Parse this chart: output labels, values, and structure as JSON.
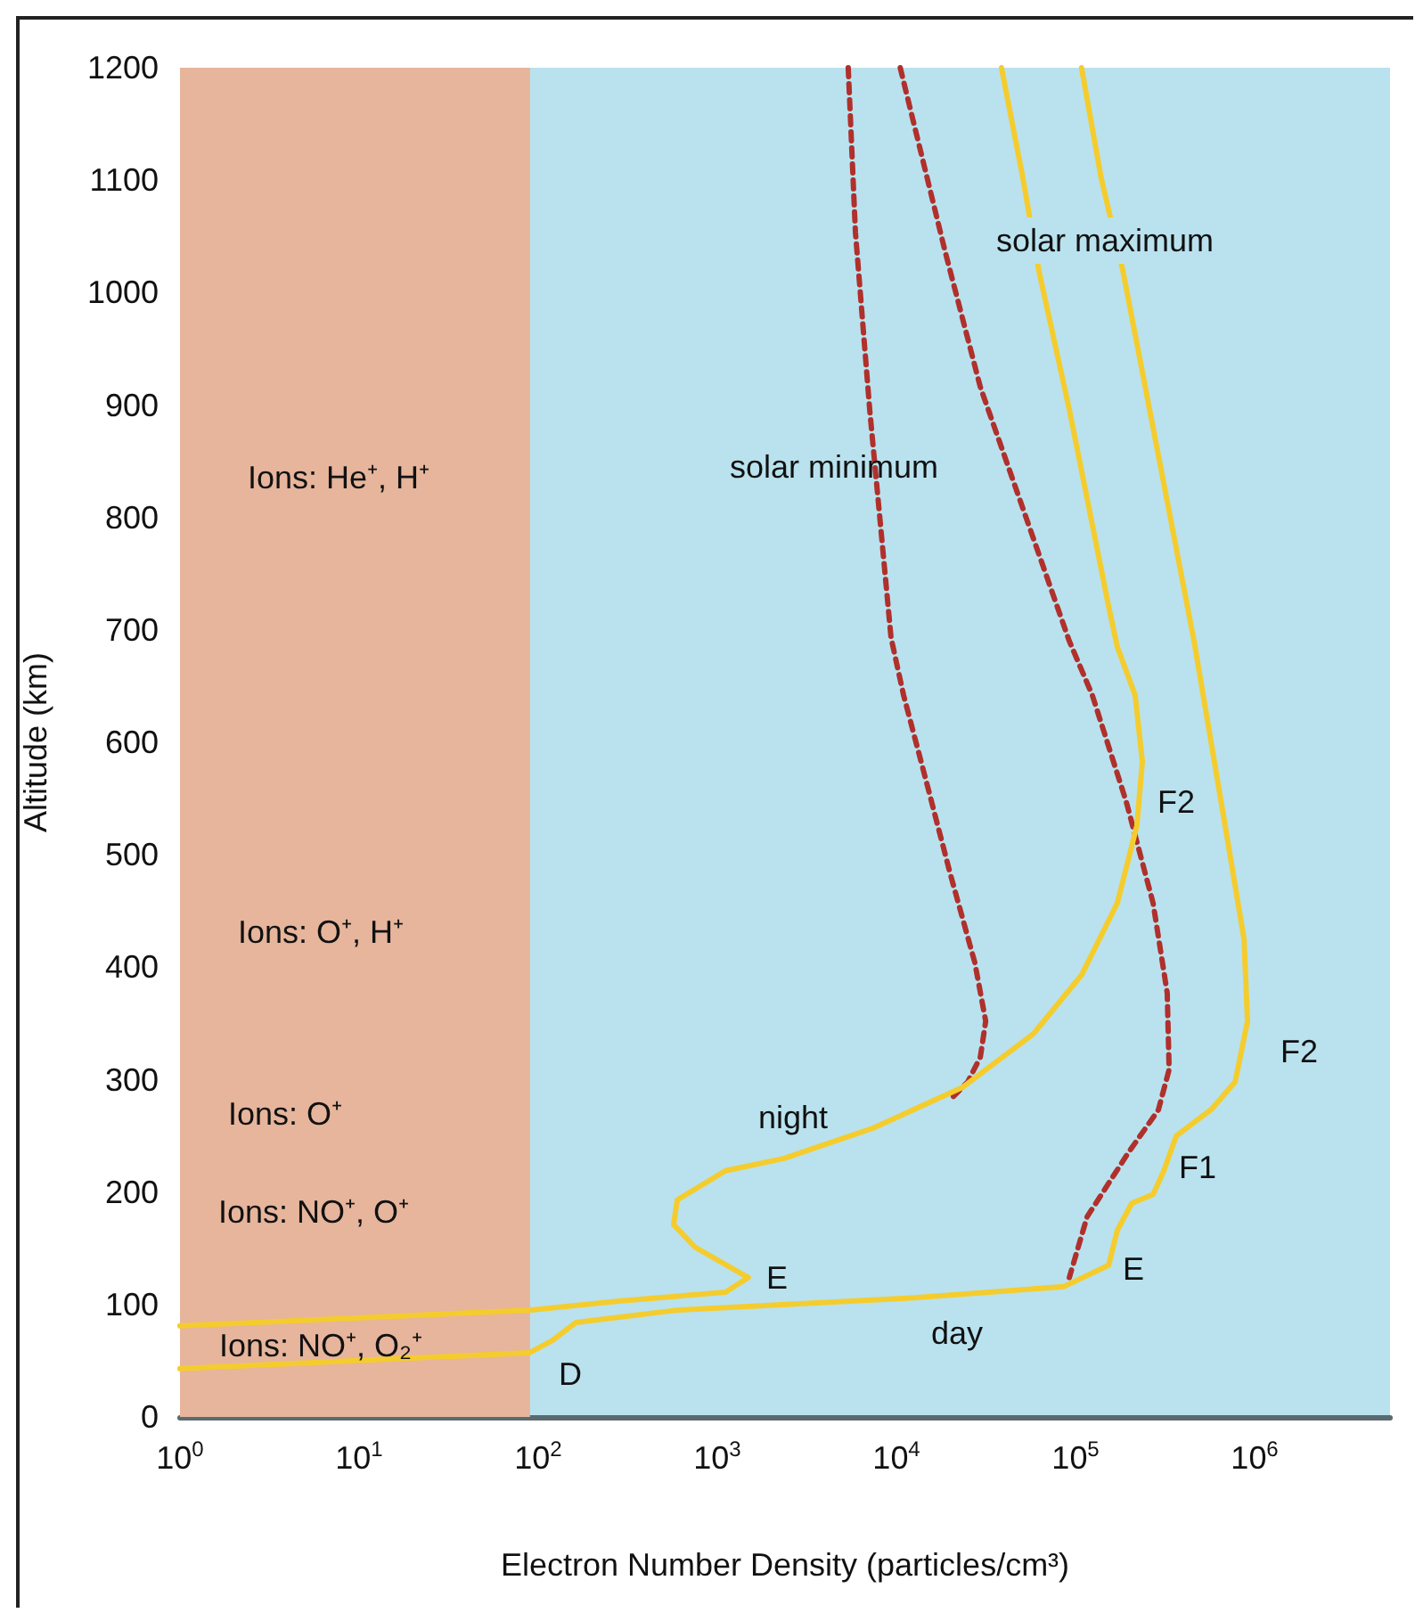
{
  "chart_data": {
    "type": "line",
    "xlabel": "Electron Number Density (particles/cm³)",
    "ylabel": "Altitude (km)",
    "log": "x",
    "grid": false,
    "marker": "none",
    "xlim": [
      1,
      5700000
    ],
    "ylim": [
      0,
      1200
    ],
    "xticks": [
      {
        "value": 1,
        "label": "10$^{0}$"
      },
      {
        "value": 10,
        "label": "10$^{1}$"
      },
      {
        "value": 100,
        "label": "10$^{2}$"
      },
      {
        "value": 1000,
        "label": "10$^{3}$"
      },
      {
        "value": 10000,
        "label": "10$^{4}$"
      },
      {
        "value": 100000,
        "label": "10$^{5}$"
      },
      {
        "value": 1000000,
        "label": "10$^{6}$"
      }
    ],
    "yticks": [
      0,
      100,
      200,
      300,
      400,
      500,
      600,
      700,
      800,
      900,
      1000,
      1100,
      1200
    ],
    "bands": [
      {
        "axis": "x",
        "from": 1,
        "to": 90,
        "color": "#e6b59c"
      }
    ],
    "series": [
      {
        "color": "#b0302c",
        "line_style": "dashed",
        "x": [
          5380,
          5900,
          7090,
          9330,
          10960,
          14800,
          19900,
          27400,
          31500,
          29400,
          25000,
          20800
        ],
        "values": [
          1200,
          1054,
          896,
          693,
          642,
          563,
          484,
          404,
          352,
          320,
          298,
          285
        ]
      },
      {
        "color": "#b0302c",
        "line_style": "dashed",
        "x": [
          10500,
          18600,
          29400,
          49800,
          92300,
          124000,
          192000,
          271000,
          325000,
          333000,
          290000,
          197000,
          116000,
          92300
        ],
        "values": [
          1200,
          1038,
          916,
          812,
          690,
          642,
          547,
          457,
          377,
          309,
          273,
          235,
          178,
          124
        ]
      },
      {
        "color": "#f5cc2e",
        "line_style": "solid",
        "x": [
          38600,
          50800,
          62500,
          92300,
          153000,
          171000,
          215000,
          236000,
          220000,
          171000,
          108000,
          58300,
          23300,
          7430,
          2360,
          1110,
          597,
          570,
          751,
          1490,
          1110,
          281,
          89,
          1
        ],
        "values": [
          1200,
          1102,
          1019,
          896,
          721,
          685,
          642,
          583,
          526,
          457,
          393,
          341,
          293,
          257,
          230,
          219,
          193,
          171,
          151,
          124,
          111,
          103,
          95,
          81
        ]
      },
      {
        "color": "#f5cc2e",
        "line_style": "solid",
        "x": [
          108000,
          139000,
          184000,
          459000,
          694000,
          872000,
          912000,
          778000,
          577000,
          365000,
          311000,
          271000,
          206000,
          171000,
          153000,
          86100,
          12600,
          597,
          162,
          120,
          89,
          1
        ],
        "values": [
          1200,
          1102,
          1019,
          690,
          520,
          425,
          352,
          298,
          274,
          250,
          219,
          198,
          190,
          166,
          135,
          116,
          106,
          95,
          84,
          68,
          57,
          43
        ]
      }
    ],
    "annotations": [
      "solar maximum",
      "solar minimum",
      "F2",
      "F2",
      "F1",
      "E",
      "E",
      "night",
      "day",
      "D",
      "Ions: He⁺, H⁺",
      "Ions: O⁺, H⁺",
      "Ions: O⁺",
      "Ions: NO⁺, O⁺",
      "Ions: NO⁺, O₂⁺"
    ]
  }
}
